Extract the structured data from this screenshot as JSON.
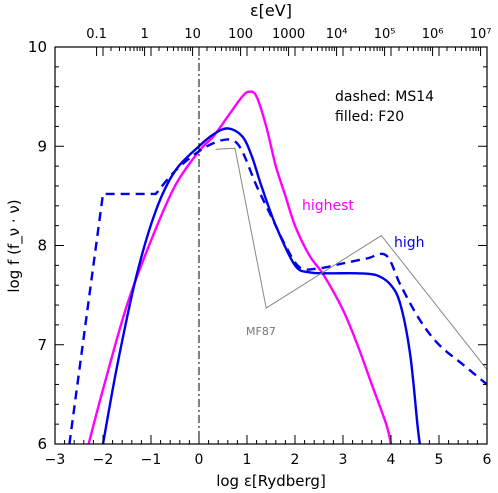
{
  "chart_data": {
    "type": "line",
    "title": "",
    "xlabel": "log ε[Rydberg]",
    "ylabel": "log f (f_ν · ν)",
    "top_axis_label": "ε[eV]",
    "xlim": [
      -3,
      6
    ],
    "ylim": [
      6,
      10
    ],
    "x_ticks": [
      "−3",
      "−2",
      "−1",
      "0",
      "1",
      "2",
      "3",
      "4",
      "5",
      "6"
    ],
    "y_ticks": [
      "6",
      "7",
      "8",
      "9",
      "10"
    ],
    "top_ticks": [
      "0.1",
      "1",
      "10",
      "100",
      "1000",
      "10⁴",
      "10⁵",
      "10⁶",
      "10⁷"
    ],
    "legend_lines": [
      "dashed: MS14",
      "filled: F20"
    ],
    "grid": false,
    "series": [
      {
        "name": "highest",
        "color": "#ff00ff",
        "style": "solid",
        "points": [
          [
            -2.3,
            6.0
          ],
          [
            -2.0,
            6.55
          ],
          [
            -1.5,
            7.4
          ],
          [
            -1.0,
            8.05
          ],
          [
            -0.5,
            8.6
          ],
          [
            0.0,
            8.95
          ],
          [
            0.3,
            9.1
          ],
          [
            0.6,
            9.3
          ],
          [
            0.9,
            9.5
          ],
          [
            1.05,
            9.55
          ],
          [
            1.2,
            9.5
          ],
          [
            1.4,
            9.2
          ],
          [
            1.6,
            8.8
          ],
          [
            1.8,
            8.5
          ],
          [
            2.0,
            8.2
          ],
          [
            2.3,
            7.9
          ],
          [
            2.6,
            7.7
          ],
          [
            3.0,
            7.35
          ],
          [
            3.3,
            7.0
          ],
          [
            3.6,
            6.6
          ],
          [
            3.9,
            6.2
          ],
          [
            4.0,
            6.0
          ]
        ]
      },
      {
        "name": "high",
        "color": "#0000ee",
        "style": "solid",
        "points": [
          [
            -2.0,
            6.0
          ],
          [
            -1.7,
            6.8
          ],
          [
            -1.3,
            7.7
          ],
          [
            -0.9,
            8.35
          ],
          [
            -0.5,
            8.75
          ],
          [
            0.0,
            9.0
          ],
          [
            0.3,
            9.12
          ],
          [
            0.6,
            9.18
          ],
          [
            0.9,
            9.1
          ],
          [
            1.1,
            8.9
          ],
          [
            1.3,
            8.6
          ],
          [
            1.6,
            8.2
          ],
          [
            2.0,
            7.8
          ],
          [
            2.3,
            7.73
          ],
          [
            2.7,
            7.72
          ],
          [
            3.3,
            7.72
          ],
          [
            3.7,
            7.7
          ],
          [
            4.0,
            7.6
          ],
          [
            4.2,
            7.4
          ],
          [
            4.4,
            6.9
          ],
          [
            4.55,
            6.2
          ],
          [
            4.6,
            6.0
          ]
        ]
      },
      {
        "name": "MS14",
        "color": "#0000ee",
        "style": "dashed",
        "points": [
          [
            -2.7,
            6.0
          ],
          [
            -2.0,
            8.52
          ],
          [
            -0.9,
            8.52
          ],
          [
            -0.5,
            8.75
          ],
          [
            0.0,
            8.95
          ],
          [
            0.4,
            9.05
          ],
          [
            0.7,
            9.06
          ],
          [
            0.9,
            8.95
          ],
          [
            1.2,
            8.6
          ],
          [
            1.5,
            8.3
          ],
          [
            1.8,
            8.0
          ],
          [
            2.1,
            7.78
          ],
          [
            2.5,
            7.77
          ],
          [
            3.0,
            7.82
          ],
          [
            3.5,
            7.87
          ],
          [
            3.9,
            7.9
          ],
          [
            4.2,
            7.6
          ],
          [
            4.6,
            7.25
          ],
          [
            5.0,
            7.0
          ],
          [
            5.5,
            6.8
          ],
          [
            6.0,
            6.6
          ]
        ]
      },
      {
        "name": "MF87",
        "color": "#888888",
        "style": "solid",
        "points": [
          [
            0.35,
            8.97
          ],
          [
            0.75,
            8.98
          ],
          [
            1.4,
            7.37
          ],
          [
            3.8,
            8.1
          ],
          [
            6.0,
            6.75
          ]
        ]
      }
    ],
    "annotations": [
      "highest",
      "high",
      "MF87"
    ],
    "vertical_line": {
      "x": 0,
      "style": "dashdot",
      "color": "#000000"
    }
  }
}
